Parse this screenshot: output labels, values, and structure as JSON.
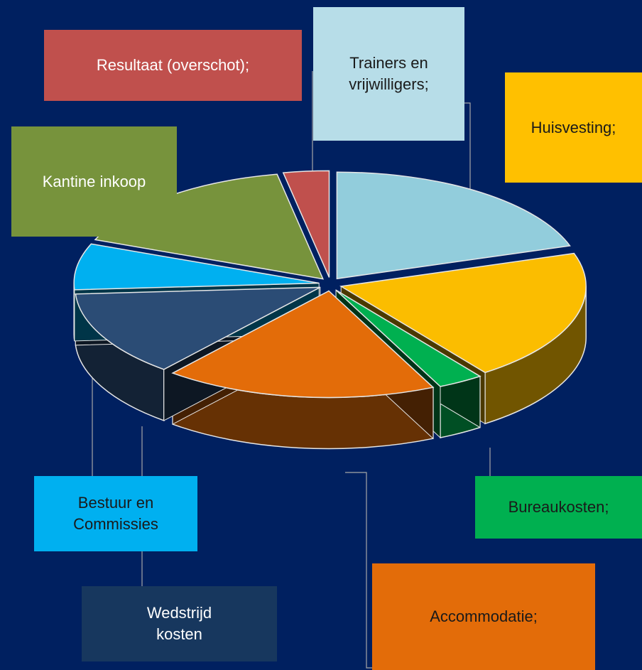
{
  "chart_data": {
    "type": "pie",
    "categories": [
      "Trainers en vrijwilligers;",
      "Huisvesting;",
      "Bureaukosten;",
      "Accommodatie;",
      "Wedstrijd kosten",
      "Bestuur en Commissies",
      "Kantine inkoop",
      "Resultaat (overschot);"
    ],
    "values": [
      20,
      20,
      3,
      18,
      13,
      7,
      16,
      3
    ],
    "colors": [
      "#92cddc",
      "#fbbd00",
      "#00b050",
      "#e36c09",
      "#2b4c75",
      "#00b0f0",
      "#77933c",
      "#c0504d"
    ]
  }
}
